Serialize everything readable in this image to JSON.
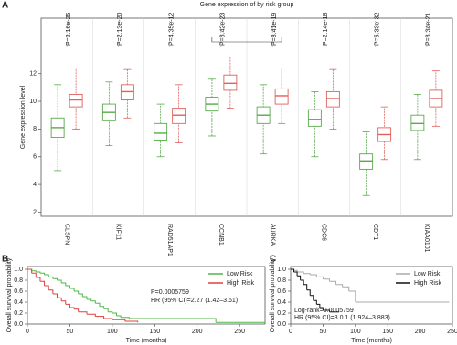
{
  "chart_data": [
    {
      "type": "box",
      "panel_label": "A",
      "title": "Gene expression of by risk group",
      "y_label": "Gene expression level",
      "categories": [
        "CLSPN",
        "KIF11",
        "RAD51AP1",
        "CCNB1",
        "AURKA",
        "CDC6",
        "CDT1",
        "KIAA0101"
      ],
      "p_labels": [
        "P=2.16e-25",
        "P=2.13e-20",
        "P=4.35e-12",
        "P=3.42e-23",
        "P=8.41e-19",
        "P=2.14e-18",
        "P=5.33e-32",
        "P=3.34e-21"
      ],
      "ylim": [
        1.7,
        16
      ],
      "yticks": [
        2,
        4,
        6,
        8,
        10,
        12
      ],
      "series": [
        {
          "name": "Low Risk",
          "color": "#5aaa4c",
          "values": [
            [
              5,
              7.4,
              8.1,
              8.8,
              11.2
            ],
            [
              6.8,
              8.6,
              9.2,
              9.8,
              11.4
            ],
            [
              6,
              7.2,
              7.7,
              8.4,
              9.8
            ],
            [
              7.5,
              9.3,
              9.8,
              10.3,
              11.6
            ],
            [
              6.2,
              8.4,
              9,
              9.6,
              11.2
            ],
            [
              6,
              8.2,
              8.7,
              9.4,
              10.7
            ],
            [
              3.2,
              5.1,
              5.7,
              6.2,
              7.8
            ],
            [
              5.8,
              7.9,
              8.4,
              9,
              10.5
            ]
          ]
        },
        {
          "name": "High Risk",
          "color": "#e0605c",
          "values": [
            [
              8,
              9.6,
              10.1,
              10.5,
              12.4
            ],
            [
              8.8,
              10.1,
              10.7,
              11.2,
              12.3
            ],
            [
              7,
              8.4,
              9,
              9.5,
              11.2
            ],
            [
              9.5,
              10.8,
              11.3,
              11.9,
              13.2
            ],
            [
              8.4,
              9.8,
              10.4,
              10.9,
              12.4
            ],
            [
              8,
              9.6,
              10.2,
              10.7,
              12.3
            ],
            [
              5.8,
              7.1,
              7.6,
              8.1,
              9.6
            ],
            [
              8.2,
              9.6,
              10.2,
              10.8,
              12.2
            ]
          ]
        }
      ]
    },
    {
      "type": "step",
      "panel_label": "B",
      "x_label": "Time (months)",
      "y_label": "Overall survival probability",
      "annotations": [
        "P=0.0005759",
        "HR (95% CI)=2.27 (1.42–3.61)"
      ],
      "xlim": [
        0,
        280
      ],
      "xticks": [
        0,
        50,
        100,
        150,
        200,
        250
      ],
      "ylim": [
        0,
        1.05
      ],
      "yticks": [
        {
          "value": 0,
          "label": "0.0"
        },
        0.2,
        0.4,
        0.6,
        0.8,
        {
          "value": 1,
          "label": "1.0"
        }
      ],
      "series": [
        {
          "name": "Low Risk",
          "color": "#4fb848",
          "x": [
            0,
            5,
            10,
            15,
            20,
            25,
            30,
            35,
            40,
            45,
            50,
            55,
            60,
            65,
            70,
            75,
            80,
            85,
            90,
            95,
            100,
            105,
            110,
            120,
            220,
            222,
            280
          ],
          "values": [
            1,
            0.97,
            0.95,
            0.93,
            0.9,
            0.86,
            0.83,
            0.8,
            0.75,
            0.7,
            0.65,
            0.6,
            0.55,
            0.5,
            0.45,
            0.42,
            0.38,
            0.32,
            0.28,
            0.22,
            0.2,
            0.15,
            0.12,
            0.1,
            0.1,
            0.03,
            0.03
          ]
        },
        {
          "name": "High Risk",
          "color": "#e0403c",
          "x": [
            0,
            5,
            10,
            15,
            20,
            25,
            30,
            35,
            40,
            45,
            50,
            55,
            60,
            70,
            80,
            90,
            100,
            115,
            130
          ],
          "values": [
            1,
            0.93,
            0.85,
            0.78,
            0.7,
            0.62,
            0.55,
            0.48,
            0.42,
            0.36,
            0.3,
            0.27,
            0.22,
            0.18,
            0.14,
            0.1,
            0.08,
            0.05,
            0.03
          ]
        }
      ]
    },
    {
      "type": "step",
      "panel_label": "C",
      "x_label": "Time (months)",
      "y_label": "Overall survival probability",
      "annotations": [
        "Log-rank=0.0005759",
        "HR (95% CI)=3.0.1 (1.924–3.883)"
      ],
      "xlim": [
        0,
        250
      ],
      "xticks": [
        0,
        50,
        100,
        150,
        200,
        250
      ],
      "ylim": [
        0,
        1.05
      ],
      "yticks": [
        {
          "value": 0,
          "label": "0.0"
        },
        0.2,
        0.4,
        0.6,
        0.8,
        {
          "value": 1,
          "label": "1.0"
        }
      ],
      "series": [
        {
          "name": "Low Risk",
          "color": "#aaaaaa",
          "x": [
            0,
            5,
            10,
            20,
            30,
            40,
            50,
            60,
            70,
            80,
            90,
            100,
            245
          ],
          "values": [
            1,
            0.98,
            0.95,
            0.92,
            0.9,
            0.86,
            0.82,
            0.78,
            0.72,
            0.68,
            0.6,
            0.4,
            0.4
          ]
        },
        {
          "name": "High Risk",
          "color": "#111111",
          "x": [
            0,
            5,
            10,
            15,
            20,
            25,
            30,
            35,
            40,
            45,
            50,
            60,
            75
          ],
          "values": [
            1,
            0.95,
            0.88,
            0.8,
            0.72,
            0.62,
            0.52,
            0.43,
            0.36,
            0.3,
            0.25,
            0.22,
            0.22
          ]
        }
      ]
    }
  ]
}
